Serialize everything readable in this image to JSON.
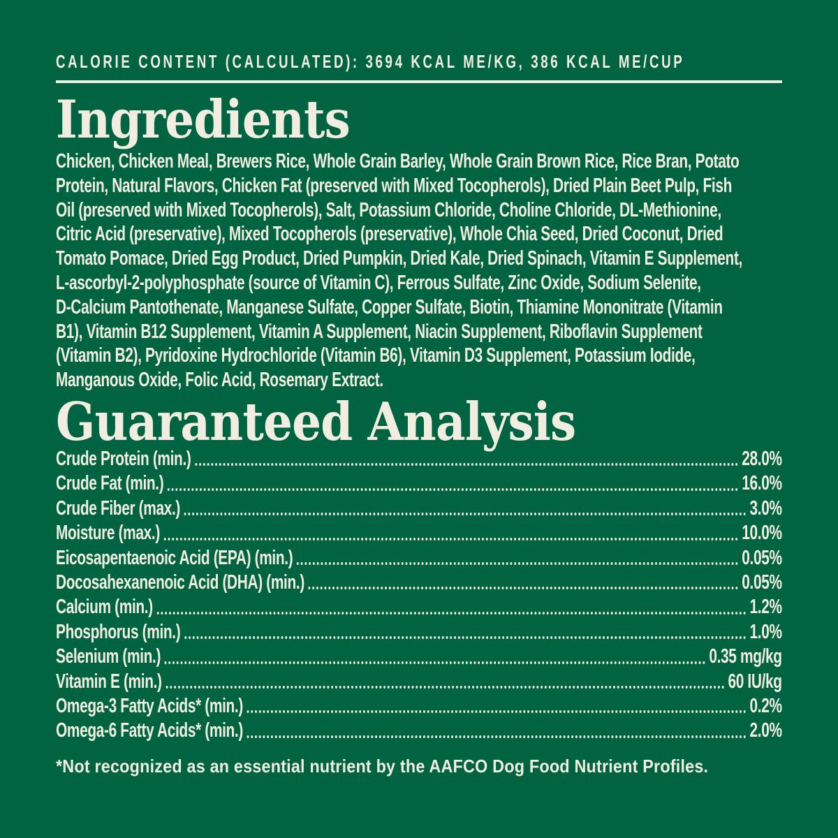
{
  "colors": {
    "background": "#006341",
    "text": "#F1EEE1"
  },
  "header": {
    "calorie_content": "CALORIE CONTENT (CALCULATED): 3694 KCAL ME/KG, 386 KCAL ME/CUP"
  },
  "ingredients": {
    "title": "Ingredients",
    "lines": [
      "Chicken, Chicken Meal, Brewers Rice, Whole Grain Barley, Whole Grain Brown Rice, Rice Bran, Potato",
      "Protein, Natural Flavors, Chicken Fat (preserved with Mixed Tocopherols), Dried Plain Beet Pulp, Fish",
      "Oil (preserved with Mixed Tocopherols), Salt, Potassium Chloride, Choline Chloride, DL-Methionine,",
      "Citric Acid (preservative), Mixed Tocopherols (preservative), Whole Chia Seed, Dried Coconut, Dried",
      "Tomato Pomace, Dried Egg Product, Dried Pumpkin, Dried Kale, Dried Spinach, Vitamin E Supplement,",
      "L-ascorbyl-2-polyphosphate (source of Vitamin C), Ferrous Sulfate, Zinc Oxide, Sodium Selenite,",
      "D-Calcium Pantothenate, Manganese Sulfate, Copper Sulfate, Biotin, Thiamine Mononitrate (Vitamin",
      "B1), Vitamin B12 Supplement, Vitamin A Supplement, Niacin Supplement, Riboflavin Supplement",
      "(Vitamin B2), Pyridoxine Hydrochloride (Vitamin B6), Vitamin D3 Supplement, Potassium Iodide,",
      "Manganous Oxide, Folic Acid, Rosemary Extract."
    ]
  },
  "guaranteed_analysis": {
    "title": "Guaranteed Analysis",
    "rows": [
      {
        "label": "Crude Protein (min.)",
        "value": "28.0%"
      },
      {
        "label": "Crude Fat (min.)",
        "value": "16.0%"
      },
      {
        "label": "Crude Fiber (max.)",
        "value": "3.0%"
      },
      {
        "label": "Moisture (max.)",
        "value": "10.0%"
      },
      {
        "label": "Eicosapentaenoic Acid (EPA) (min.)",
        "value": "0.05%"
      },
      {
        "label": "Docosahexanenoic Acid (DHA) (min.)",
        "value": "0.05%"
      },
      {
        "label": "Calcium (min.)",
        "value": "1.2%"
      },
      {
        "label": "Phosphorus (min.)",
        "value": "1.0%"
      },
      {
        "label": "Selenium (min.)",
        "value": "0.35 mg/kg"
      },
      {
        "label": "Vitamin E (min.)",
        "value": "60 IU/kg"
      },
      {
        "label": "Omega-3 Fatty Acids* (min.)",
        "value": "0.2%"
      },
      {
        "label": "Omega-6 Fatty Acids* (min.)",
        "value": "2.0%"
      }
    ],
    "footnote": "*Not recognized as an essential nutrient by the AAFCO Dog Food Nutrient Profiles."
  }
}
